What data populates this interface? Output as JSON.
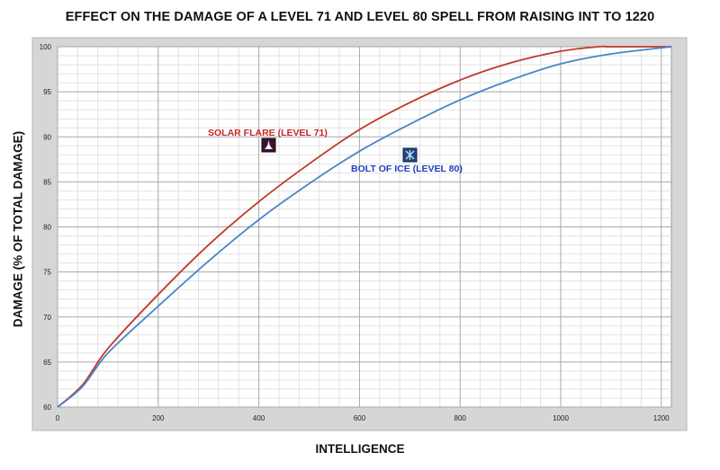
{
  "chart_data": {
    "type": "line",
    "title": "EFFECT ON THE DAMAGE OF A LEVEL 71 AND LEVEL 80 SPELL FROM RAISING INT TO 1220",
    "xlabel": "INTELLIGENCE",
    "ylabel": "DAMAGE (% OF TOTAL DAMAGE)",
    "xlim": [
      0,
      1220
    ],
    "ylim": [
      60,
      100
    ],
    "x_ticks": [
      0,
      200,
      400,
      600,
      800,
      1000,
      1200
    ],
    "y_ticks": [
      60,
      65,
      70,
      75,
      80,
      85,
      90,
      95,
      100
    ],
    "grid": true,
    "series": [
      {
        "name": "SOLAR FLARE (LEVEL 71)",
        "color": "#c0392b",
        "icon": "solar-flare-spell-icon",
        "x": [
          0,
          50,
          100,
          200,
          300,
          400,
          500,
          600,
          700,
          800,
          900,
          1000,
          1075,
          1100,
          1220
        ],
        "y": [
          60,
          62.5,
          66.5,
          72.5,
          78,
          82.8,
          87,
          90.8,
          93.8,
          96.3,
          98.2,
          99.5,
          100,
          100,
          100
        ]
      },
      {
        "name": "BOLT OF ICE (LEVEL 80)",
        "color": "#4a86c8",
        "icon": "bolt-of-ice-spell-icon",
        "x": [
          0,
          50,
          100,
          200,
          300,
          400,
          500,
          600,
          700,
          800,
          900,
          1000,
          1100,
          1220
        ],
        "y": [
          60,
          62.3,
          66,
          71.2,
          76.2,
          80.8,
          84.8,
          88.4,
          91.4,
          94.1,
          96.3,
          98.1,
          99.2,
          100
        ]
      }
    ]
  }
}
